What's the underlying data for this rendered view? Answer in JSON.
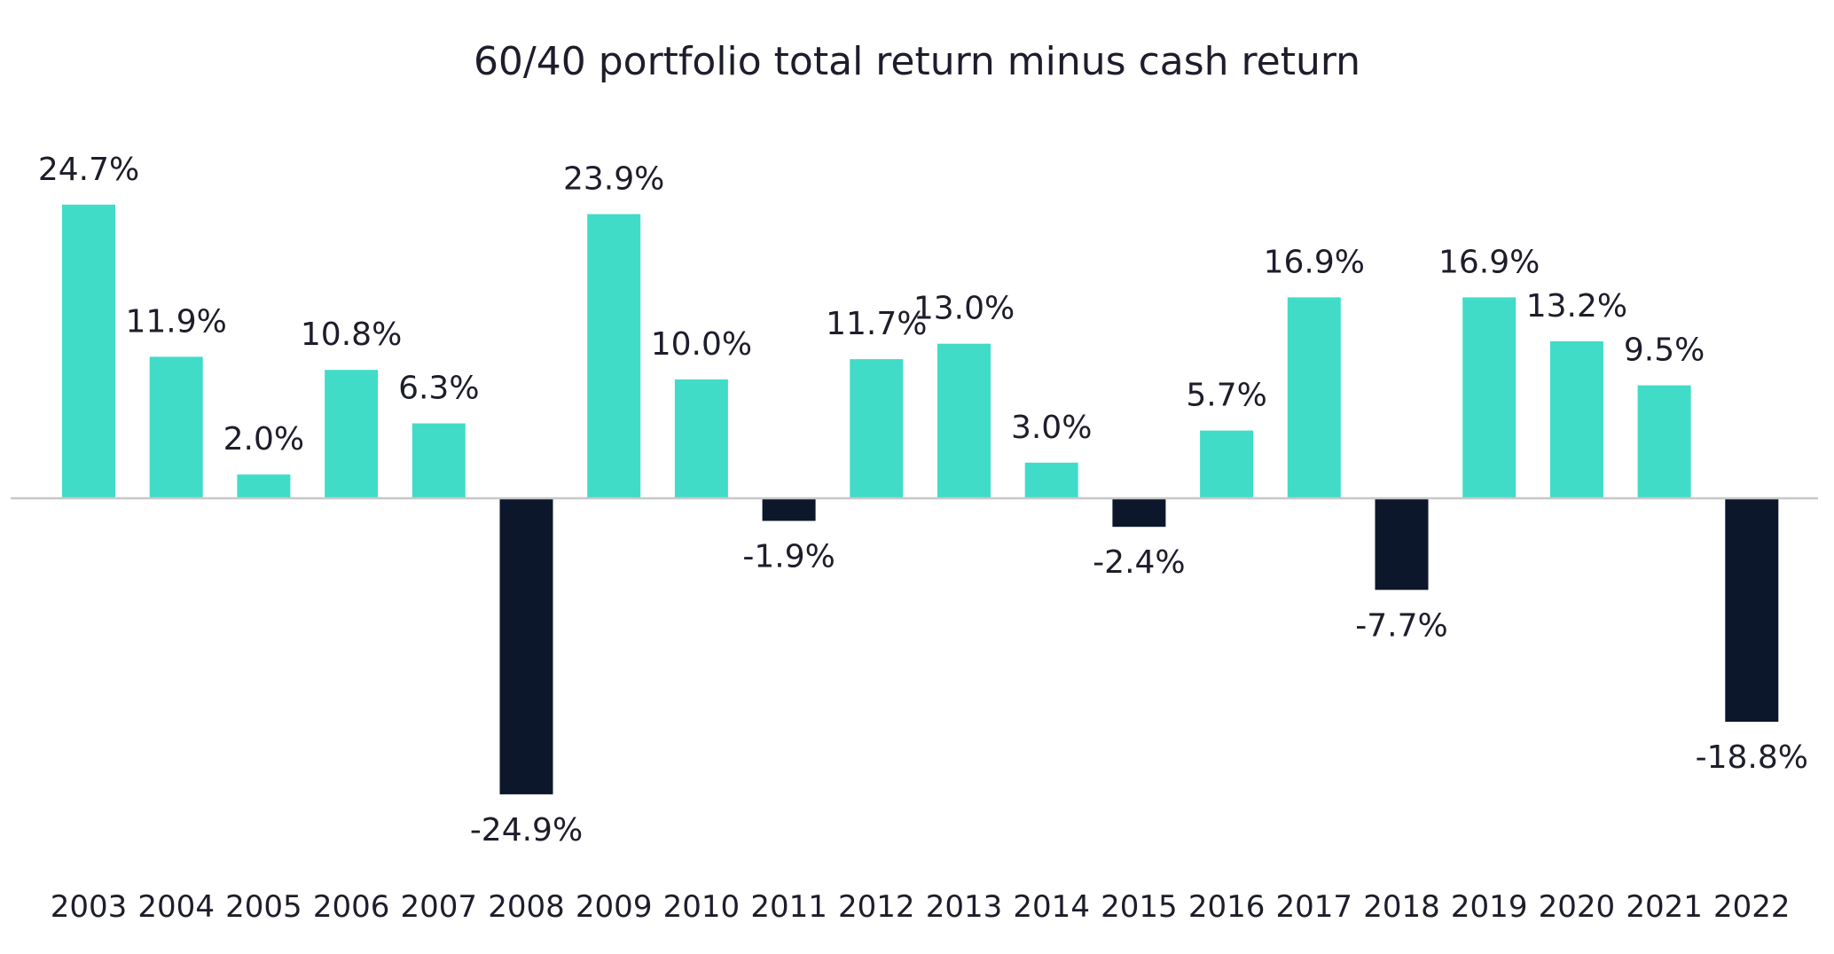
{
  "chart_data": {
    "type": "bar",
    "title": "60/40 portfolio total return minus cash return",
    "xlabel": "",
    "ylabel": "",
    "categories": [
      "2003",
      "2004",
      "2005",
      "2006",
      "2007",
      "2008",
      "2009",
      "2010",
      "2011",
      "2012",
      "2013",
      "2014",
      "2015",
      "2016",
      "2017",
      "2018",
      "2019",
      "2020",
      "2021",
      "2022"
    ],
    "values": [
      24.7,
      11.9,
      2.0,
      10.8,
      6.3,
      -24.9,
      23.9,
      10.0,
      -1.9,
      11.7,
      13.0,
      3.0,
      -2.4,
      5.7,
      16.9,
      -7.7,
      16.9,
      13.2,
      9.5,
      -18.8
    ],
    "data_labels": [
      "24.7%",
      "11.9%",
      "2.0%",
      "10.8%",
      "6.3%",
      "-24.9%",
      "23.9%",
      "10.0%",
      "-1.9%",
      "11.7%",
      "13.0%",
      "3.0%",
      "-2.4%",
      "5.7%",
      "16.9%",
      "-7.7%",
      "16.9%",
      "13.2%",
      "9.5%",
      "-18.8%"
    ],
    "ylim": [
      -30,
      30
    ],
    "grid": false,
    "legend": "none",
    "colors": {
      "positive": "#40dcc8",
      "negative": "#0c172b",
      "baseline": "#c8c8c8",
      "text": "#1d1d2b"
    }
  }
}
